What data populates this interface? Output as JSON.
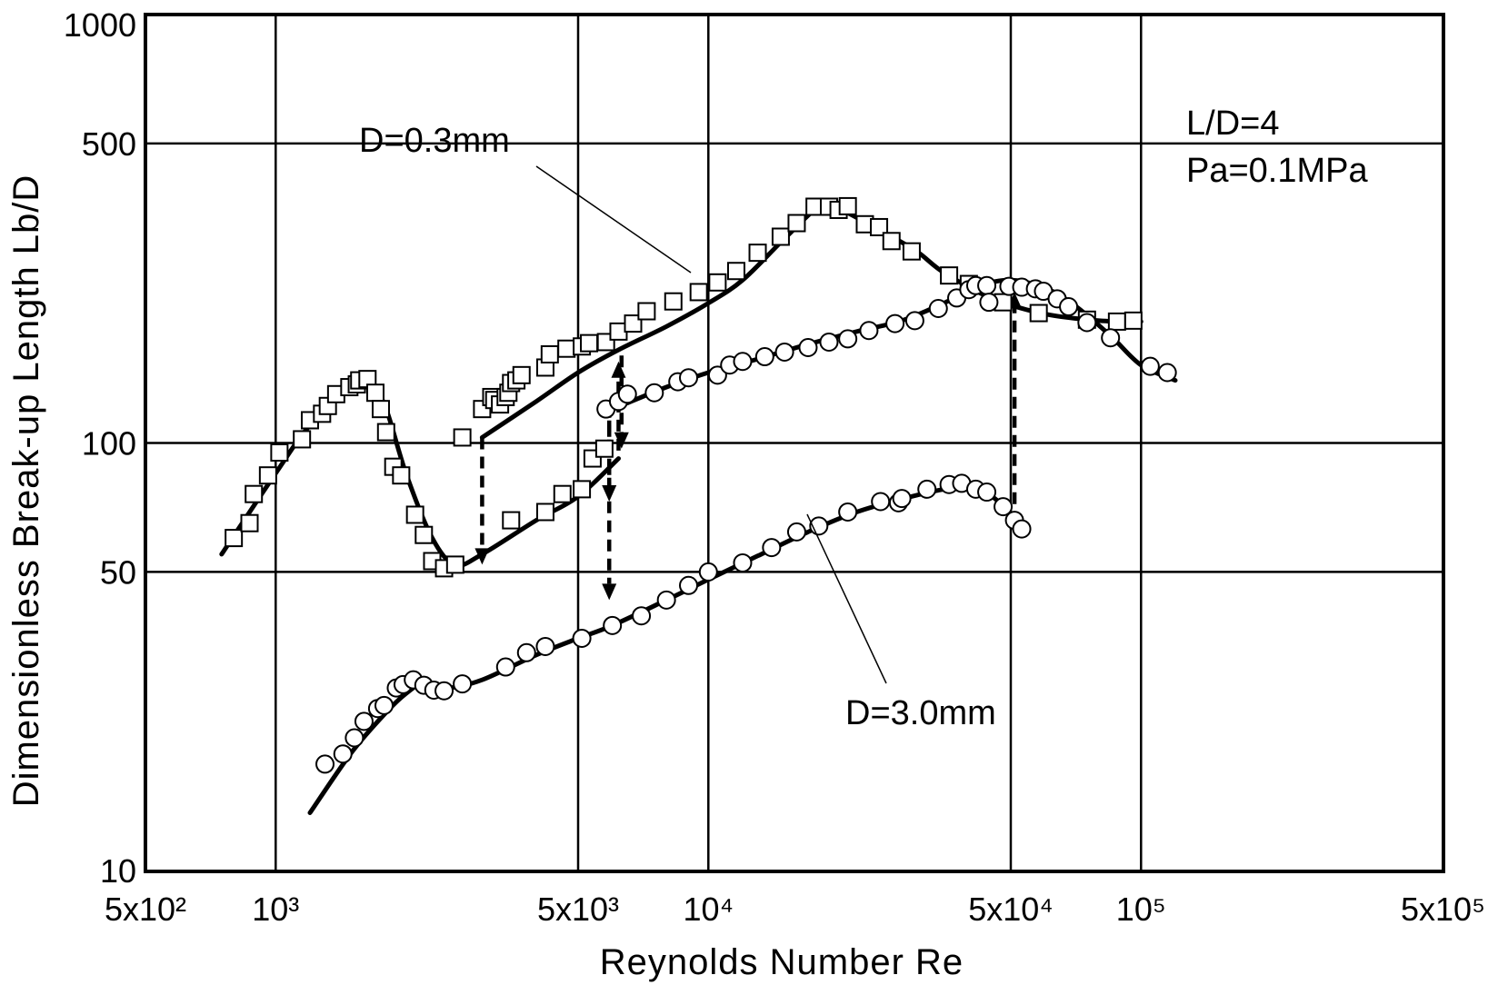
{
  "chart_data": {
    "type": "scatter",
    "xlabel": "Reynolds Number Re",
    "ylabel": "Dimensionless Break-up Length Lb/D",
    "x_scale": "log",
    "y_scale": "log",
    "xlim": [
      500,
      500000
    ],
    "ylim": [
      10,
      1000
    ],
    "grid": true,
    "x_ticks": [
      {
        "value": 500,
        "label": "5x10²"
      },
      {
        "value": 1000,
        "label": "10³"
      },
      {
        "value": 5000,
        "label": "5x10³"
      },
      {
        "value": 10000,
        "label": "10⁴"
      },
      {
        "value": 50000,
        "label": "5x10⁴"
      },
      {
        "value": 100000,
        "label": "10⁵"
      },
      {
        "value": 500000,
        "label": "5x10⁵"
      }
    ],
    "y_ticks": [
      {
        "value": 10,
        "label": "10"
      },
      {
        "value": 50,
        "label": "50"
      },
      {
        "value": 100,
        "label": "100"
      },
      {
        "value": 500,
        "label": "500"
      },
      {
        "value": 1000,
        "label": "1000"
      }
    ],
    "annotations": {
      "ld": "L/D=4",
      "pa": "Pa=0.1MPa"
    },
    "series": [
      {
        "name": "D=0.3mm",
        "marker": "square",
        "points": [
          [
            800,
            60
          ],
          [
            870,
            65
          ],
          [
            890,
            76
          ],
          [
            960,
            84
          ],
          [
            1020,
            95
          ],
          [
            1150,
            102
          ],
          [
            1200,
            113
          ],
          [
            1280,
            117
          ],
          [
            1320,
            122
          ],
          [
            1380,
            130
          ],
          [
            1480,
            135
          ],
          [
            1540,
            137
          ],
          [
            1560,
            140
          ],
          [
            1630,
            141
          ],
          [
            1700,
            131
          ],
          [
            1750,
            120
          ],
          [
            1800,
            106
          ],
          [
            1870,
            88
          ],
          [
            1950,
            84
          ],
          [
            2100,
            68
          ],
          [
            2200,
            61
          ],
          [
            2300,
            53
          ],
          [
            2450,
            51
          ],
          [
            2600,
            52
          ],
          [
            3500,
            66
          ],
          [
            4200,
            69
          ],
          [
            4600,
            76
          ],
          [
            5100,
            78
          ],
          [
            5400,
            92
          ],
          [
            5750,
            97
          ],
          [
            2700,
            103
          ],
          [
            3000,
            120
          ],
          [
            3150,
            128
          ],
          [
            3200,
            126
          ],
          [
            3300,
            123
          ],
          [
            3400,
            128
          ],
          [
            3450,
            131
          ],
          [
            3500,
            138
          ],
          [
            3600,
            140
          ],
          [
            3700,
            144
          ],
          [
            4200,
            150
          ],
          [
            4300,
            161
          ],
          [
            4700,
            166
          ],
          [
            5100,
            168
          ],
          [
            5300,
            171
          ],
          [
            5800,
            172
          ],
          [
            6200,
            182
          ],
          [
            6700,
            190
          ],
          [
            7200,
            203
          ],
          [
            8300,
            214
          ],
          [
            9500,
            225
          ],
          [
            10500,
            237
          ],
          [
            11600,
            252
          ],
          [
            13000,
            278
          ],
          [
            14700,
            303
          ],
          [
            16000,
            326
          ],
          [
            17600,
            356
          ],
          [
            19000,
            356
          ],
          [
            20000,
            350
          ],
          [
            21000,
            357
          ],
          [
            23000,
            324
          ],
          [
            24800,
            319
          ],
          [
            26500,
            296
          ],
          [
            29500,
            280
          ],
          [
            36000,
            246
          ],
          [
            40000,
            235
          ],
          [
            48000,
            213
          ],
          [
            58000,
            201
          ],
          [
            75000,
            194
          ],
          [
            88000,
            192
          ],
          [
            96000,
            193
          ]
        ]
      },
      {
        "name": "D=3.0mm",
        "marker": "circle",
        "points": [
          [
            1300,
            17.8
          ],
          [
            1430,
            18.8
          ],
          [
            1520,
            20.5
          ],
          [
            1600,
            22.4
          ],
          [
            1720,
            24
          ],
          [
            1780,
            24.4
          ],
          [
            1900,
            26.8
          ],
          [
            1970,
            27.3
          ],
          [
            2080,
            28
          ],
          [
            2200,
            27.2
          ],
          [
            2320,
            26.5
          ],
          [
            2450,
            26.4
          ],
          [
            2700,
            27.4
          ],
          [
            3400,
            30
          ],
          [
            3800,
            32.4
          ],
          [
            4200,
            33.5
          ],
          [
            5100,
            35
          ],
          [
            6000,
            37.5
          ],
          [
            7000,
            39.5
          ],
          [
            8000,
            43
          ],
          [
            9000,
            46.5
          ],
          [
            10000,
            50
          ],
          [
            12000,
            52.5
          ],
          [
            14000,
            57
          ],
          [
            16000,
            62
          ],
          [
            18000,
            64
          ],
          [
            21000,
            69
          ],
          [
            25000,
            73
          ],
          [
            27500,
            72.5
          ],
          [
            28000,
            74.2
          ],
          [
            32000,
            78
          ],
          [
            36000,
            80
          ],
          [
            38500,
            80.5
          ],
          [
            41500,
            78
          ],
          [
            44000,
            76.8
          ],
          [
            48000,
            71
          ],
          [
            51000,
            66
          ],
          [
            53000,
            63
          ],
          [
            5800,
            120
          ],
          [
            6200,
            125
          ],
          [
            6500,
            130
          ],
          [
            7500,
            131
          ],
          [
            8500,
            139
          ],
          [
            9000,
            142
          ],
          [
            10500,
            144
          ],
          [
            11200,
            152
          ],
          [
            12000,
            155
          ],
          [
            13500,
            159
          ],
          [
            15000,
            163
          ],
          [
            17000,
            167
          ],
          [
            19000,
            172
          ],
          [
            21000,
            175
          ],
          [
            23500,
            183
          ],
          [
            27000,
            190
          ],
          [
            30000,
            193
          ],
          [
            34000,
            206
          ],
          [
            37500,
            218
          ],
          [
            40000,
            228
          ],
          [
            41500,
            233
          ],
          [
            44000,
            233
          ],
          [
            44500,
            213
          ],
          [
            49500,
            232
          ],
          [
            53000,
            231
          ],
          [
            57000,
            229
          ],
          [
            59500,
            226
          ],
          [
            64000,
            217
          ],
          [
            68000,
            208
          ],
          [
            75000,
            191
          ],
          [
            85000,
            176
          ],
          [
            105000,
            151
          ],
          [
            115000,
            146
          ]
        ]
      }
    ],
    "curves": [
      {
        "name": "D=0.3mm",
        "points": [
          [
            750,
            55
          ],
          [
            1000,
            85
          ],
          [
            1200,
            110
          ],
          [
            1500,
            135
          ],
          [
            1650,
            140
          ],
          [
            1800,
            120
          ],
          [
            2000,
            85
          ],
          [
            2300,
            60
          ],
          [
            2600,
            52
          ],
          [
            3000,
            55
          ],
          [
            4000,
            66
          ],
          [
            5000,
            75
          ],
          [
            6200,
            92
          ]
        ]
      },
      {
        "name": "D=0.3mm",
        "points": [
          [
            3000,
            103
          ],
          [
            4000,
            125
          ],
          [
            5000,
            146
          ],
          [
            6200,
            165
          ],
          [
            8000,
            187
          ],
          [
            10000,
            212
          ],
          [
            12000,
            240
          ],
          [
            15000,
            300
          ],
          [
            18000,
            355
          ],
          [
            20000,
            352
          ],
          [
            24000,
            320
          ],
          [
            30000,
            282
          ],
          [
            35000,
            250
          ],
          [
            45000,
            218
          ],
          [
            60000,
            200
          ],
          [
            80000,
            193
          ],
          [
            100000,
            192
          ]
        ]
      },
      {
        "name": "D=3.0mm",
        "points": [
          [
            1200,
            13.7
          ],
          [
            1500,
            19
          ],
          [
            1800,
            23.5
          ],
          [
            2000,
            26
          ],
          [
            2200,
            27.5
          ],
          [
            2500,
            26.8
          ],
          [
            3000,
            28
          ],
          [
            4000,
            32
          ],
          [
            5000,
            35
          ],
          [
            6000,
            37.5
          ],
          [
            8000,
            43
          ],
          [
            10000,
            48
          ],
          [
            13000,
            54.5
          ],
          [
            17000,
            62
          ],
          [
            22000,
            69
          ],
          [
            28000,
            74
          ],
          [
            35000,
            78
          ],
          [
            40000,
            79
          ],
          [
            44000,
            76.5
          ],
          [
            49000,
            70
          ],
          [
            53000,
            64
          ]
        ]
      },
      {
        "name": "D=3.0mm",
        "points": [
          [
            6500,
            124
          ],
          [
            8000,
            135
          ],
          [
            10000,
            146
          ],
          [
            13000,
            157
          ],
          [
            17000,
            170
          ],
          [
            22000,
            182
          ],
          [
            28000,
            193
          ],
          [
            35000,
            212
          ],
          [
            42000,
            232
          ],
          [
            50000,
            240
          ],
          [
            60000,
            230
          ],
          [
            70000,
            210
          ],
          [
            85000,
            178
          ],
          [
            100000,
            152
          ],
          [
            120000,
            140
          ]
        ]
      }
    ],
    "transition_arrows": [
      {
        "x": 3000,
        "from": 103,
        "to": 52
      },
      {
        "x": 5900,
        "from": 122,
        "to": 43
      },
      {
        "x": 5900,
        "from": 125,
        "to": 73
      },
      {
        "x": 6200,
        "from": 96,
        "to": 155
      },
      {
        "x": 6300,
        "from": 160,
        "to": 97
      },
      {
        "x": 51000,
        "from": 65,
        "to": 225
      }
    ]
  }
}
